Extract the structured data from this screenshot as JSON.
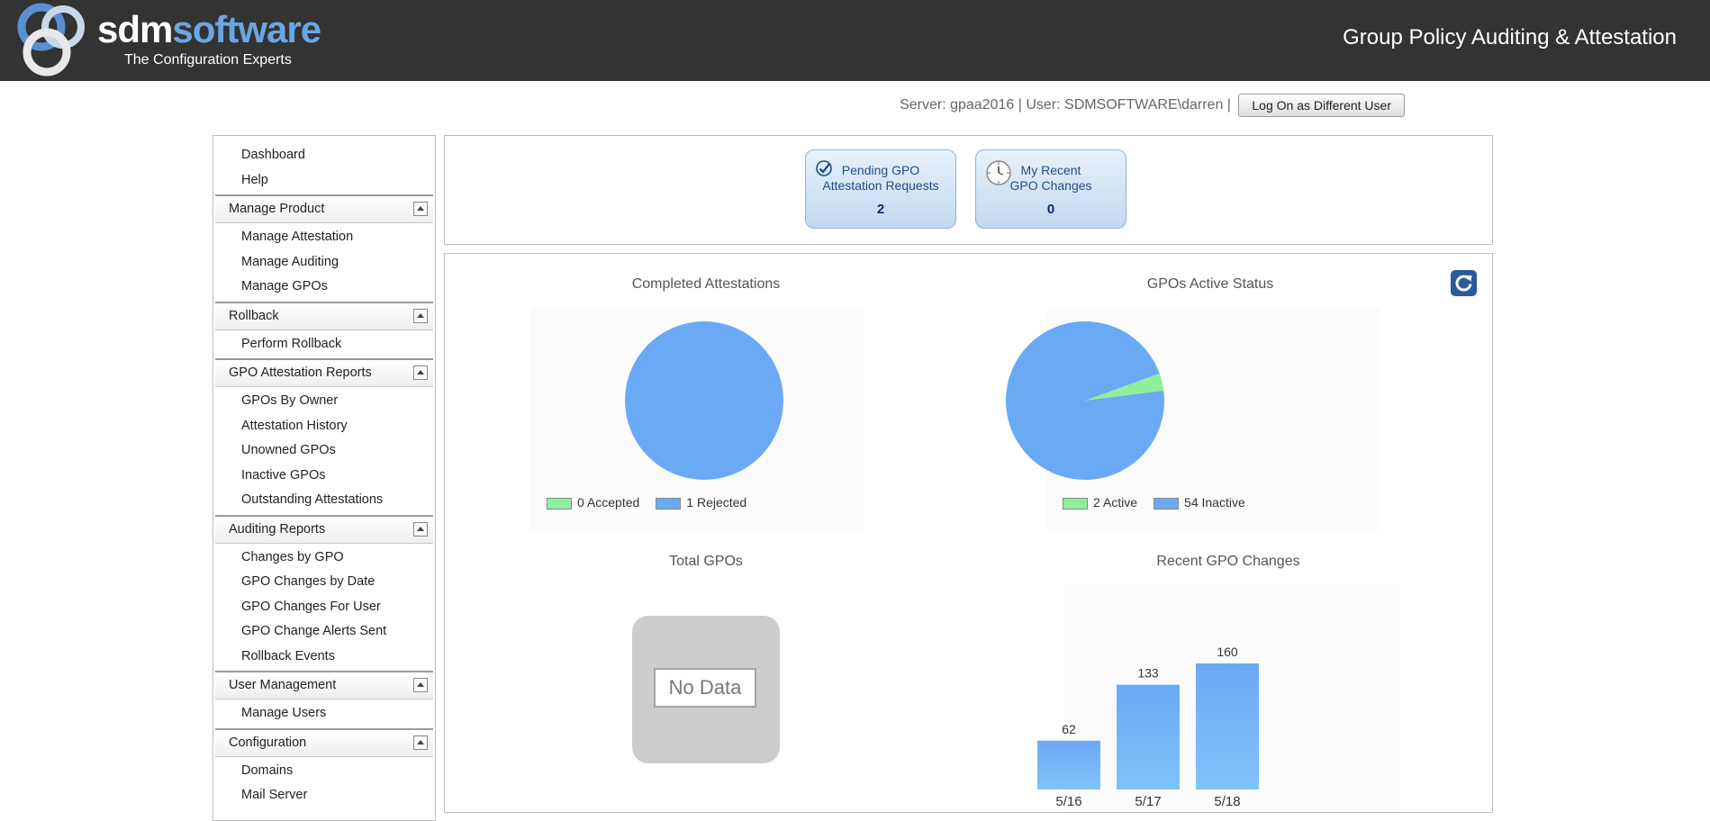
{
  "header": {
    "logo_part1": "sdm",
    "logo_part2": "software",
    "logo_tagline": "The Configuration Experts",
    "app_title": "Group Policy Auditing & Attestation"
  },
  "userbar": {
    "info": "Server: gpaa2016 | User: SDMSOFTWARE\\darren |",
    "logon_button": "Log On as Different User"
  },
  "sidebar": {
    "top_items": [
      "Dashboard",
      "Help"
    ],
    "sections": [
      {
        "title": "Manage Product",
        "items": [
          "Manage Attestation",
          "Manage Auditing",
          "Manage GPOs"
        ]
      },
      {
        "title": "Rollback",
        "items": [
          "Perform Rollback"
        ]
      },
      {
        "title": "GPO Attestation Reports",
        "items": [
          "GPOs By Owner",
          "Attestation History",
          "Unowned GPOs",
          "Inactive GPOs",
          "Outstanding Attestations"
        ]
      },
      {
        "title": "Auditing Reports",
        "items": [
          "Changes by GPO",
          "GPO Changes by Date",
          "GPO Changes For User",
          "GPO Change Alerts Sent",
          "Rollback Events"
        ]
      },
      {
        "title": "User Management",
        "items": [
          "Manage Users"
        ]
      },
      {
        "title": "Configuration",
        "items": [
          "Domains",
          "Mail Server"
        ]
      }
    ]
  },
  "tiles": [
    {
      "line1": "Pending GPO",
      "line2": "Attestation Requests",
      "count": "2",
      "icon": "checkmark-icon"
    },
    {
      "line1": "My Recent",
      "line2": "GPO Changes",
      "count": "0",
      "icon": "clock-icon"
    }
  ],
  "colors": {
    "accepted_active": "#8ef09a",
    "rejected_inactive": "#6aaaf5",
    "bar": "#6aaaf5"
  },
  "chart_data": [
    {
      "type": "pie",
      "title": "Completed Attestations",
      "legend": "bottom",
      "slices": [
        {
          "label": "0 Accepted",
          "value": 0
        },
        {
          "label": "1 Rejected",
          "value": 1
        }
      ]
    },
    {
      "type": "pie",
      "title": "GPOs Active Status",
      "legend": "bottom",
      "slices": [
        {
          "label": "2 Active",
          "value": 2
        },
        {
          "label": "54 Inactive",
          "value": 54
        }
      ]
    },
    {
      "type": "bar",
      "title": "Total GPOs",
      "no_data": "No Data",
      "categories": [],
      "values": []
    },
    {
      "type": "bar",
      "title": "Recent GPO Changes",
      "categories": [
        "5/16",
        "5/17",
        "5/18"
      ],
      "values": [
        62,
        133,
        160
      ],
      "data_labels": [
        "62",
        "133",
        "160"
      ]
    }
  ]
}
